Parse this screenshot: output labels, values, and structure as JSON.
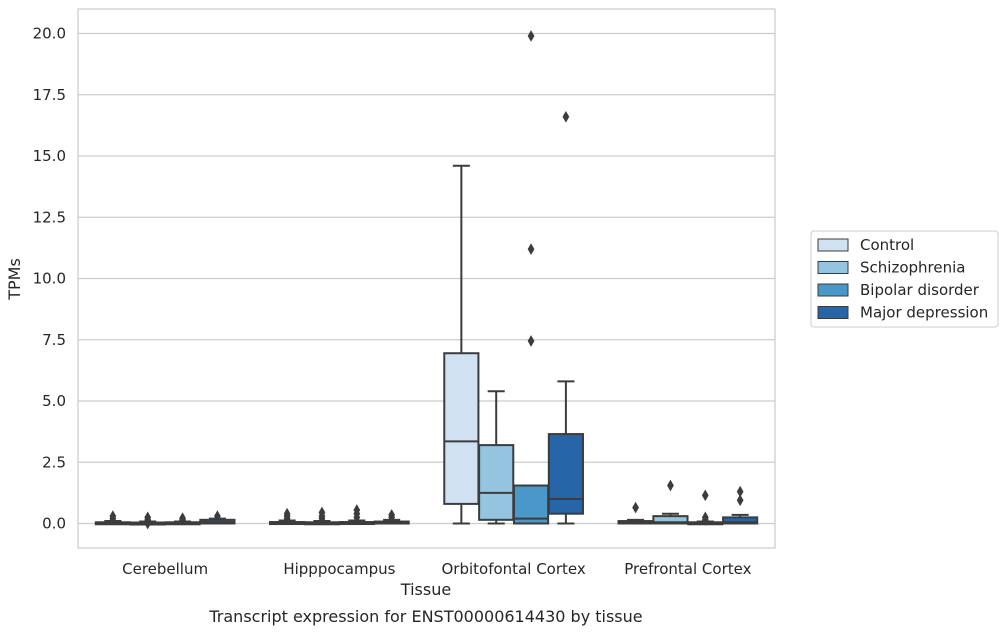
{
  "chart_data": {
    "type": "box",
    "xlabel": "Tissue",
    "ylabel": "TPMs",
    "caption": "Transcript expression for ENST00000614430 by tissue",
    "ylim": [
      -1,
      21
    ],
    "yticks": [
      "0.0",
      "2.5",
      "5.0",
      "7.5",
      "10.0",
      "12.5",
      "15.0",
      "17.5",
      "20.0"
    ],
    "grid": "horizontal",
    "legend_position": "right",
    "categories": [
      "Cerebellum",
      "Hipppocampus",
      "Orbitofontal Cortex",
      "Prefrontal Cortex"
    ],
    "series": [
      {
        "name": "Control",
        "color": "#d0e1f2",
        "boxes": [
          {
            "whislo": 0,
            "q1": 0,
            "med": 0.02,
            "q3": 0.05,
            "whishi": 0.1,
            "fliers": [
              0.2,
              0.3
            ]
          },
          {
            "whislo": 0,
            "q1": 0,
            "med": 0.02,
            "q3": 0.06,
            "whishi": 0.12,
            "fliers": [
              0.2,
              0.3,
              0.4
            ]
          },
          {
            "whislo": 0,
            "q1": 0.8,
            "med": 3.35,
            "q3": 6.95,
            "whishi": 14.6,
            "fliers": []
          },
          {
            "whislo": 0,
            "q1": 0,
            "med": 0.03,
            "q3": 0.1,
            "whishi": 0.15,
            "fliers": [
              0.65
            ]
          }
        ]
      },
      {
        "name": "Schizophrenia",
        "color": "#94c4df",
        "boxes": [
          {
            "whislo": 0,
            "q1": 0,
            "med": 0.02,
            "q3": 0.04,
            "whishi": 0.08,
            "fliers": [
              0.0,
              0.15,
              0.25
            ]
          },
          {
            "whislo": 0,
            "q1": 0,
            "med": 0.02,
            "q3": 0.05,
            "whishi": 0.1,
            "fliers": [
              0.2,
              0.3,
              0.45
            ]
          },
          {
            "whislo": 0,
            "q1": 0.15,
            "med": 1.25,
            "q3": 3.2,
            "whishi": 5.4,
            "fliers": []
          },
          {
            "whislo": 0,
            "q1": 0,
            "med": 0.05,
            "q3": 0.3,
            "whishi": 0.4,
            "fliers": [
              1.55
            ]
          }
        ]
      },
      {
        "name": "Bipolar disorder",
        "color": "#4a98c9",
        "boxes": [
          {
            "whislo": 0,
            "q1": 0,
            "med": 0.02,
            "q3": 0.05,
            "whishi": 0.08,
            "fliers": [
              0.15,
              0.22
            ]
          },
          {
            "whislo": 0,
            "q1": 0,
            "med": 0.02,
            "q3": 0.06,
            "whishi": 0.12,
            "fliers": [
              0.25,
              0.4,
              0.55
            ]
          },
          {
            "whislo": 0,
            "q1": 0,
            "med": 0.2,
            "q3": 1.55,
            "whishi": 1.55,
            "fliers": [
              7.45,
              11.2,
              19.9
            ]
          },
          {
            "whislo": 0,
            "q1": 0,
            "med": 0.02,
            "q3": 0.05,
            "whishi": 0.08,
            "fliers": [
              0.15,
              0.25,
              1.15
            ]
          }
        ]
      },
      {
        "name": "Major depression",
        "color": "#2665a8",
        "boxes": [
          {
            "whislo": 0,
            "q1": 0,
            "med": 0.05,
            "q3": 0.15,
            "whishi": 0.2,
            "fliers": [
              0.3
            ]
          },
          {
            "whislo": 0,
            "q1": 0,
            "med": 0.03,
            "q3": 0.08,
            "whishi": 0.15,
            "fliers": [
              0.25,
              0.35
            ]
          },
          {
            "whislo": 0,
            "q1": 0.4,
            "med": 1.0,
            "q3": 3.65,
            "whishi": 5.8,
            "fliers": [
              16.6
            ]
          },
          {
            "whislo": 0,
            "q1": 0,
            "med": 0.05,
            "q3": 0.25,
            "whishi": 0.35,
            "fliers": [
              0.95,
              1.3
            ]
          }
        ]
      }
    ]
  }
}
